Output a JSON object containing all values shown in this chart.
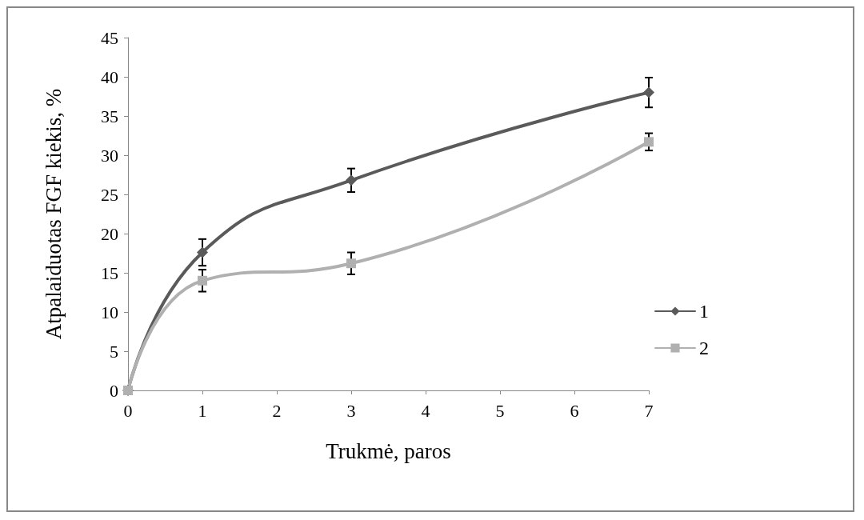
{
  "chart_data": {
    "type": "line",
    "xlabel": "Trukmė, paros",
    "ylabel": "Atpalaiduotas FGF kiekis, %",
    "xlim": [
      0,
      7
    ],
    "xticks": [
      0,
      1,
      2,
      3,
      4,
      5,
      6,
      7
    ],
    "ylim": [
      0,
      45
    ],
    "yticks": [
      0,
      5,
      10,
      15,
      20,
      25,
      30,
      35,
      40,
      45
    ],
    "grid": false,
    "legend": "right",
    "line_style": "solid",
    "series": [
      {
        "name": "1",
        "color": "#5a5a5a",
        "marker": "diamond",
        "x": [
          0,
          1,
          3,
          7
        ],
        "values": [
          0,
          17.6,
          26.8,
          38
        ],
        "errors": [
          null,
          1.7,
          1.5,
          1.9
        ]
      },
      {
        "name": "2",
        "color": "#b0b0b0",
        "marker": "square",
        "x": [
          0,
          1,
          3,
          7
        ],
        "values": [
          0,
          14,
          16.2,
          31.7
        ],
        "errors": [
          null,
          1.4,
          1.4,
          1.1
        ]
      }
    ]
  }
}
